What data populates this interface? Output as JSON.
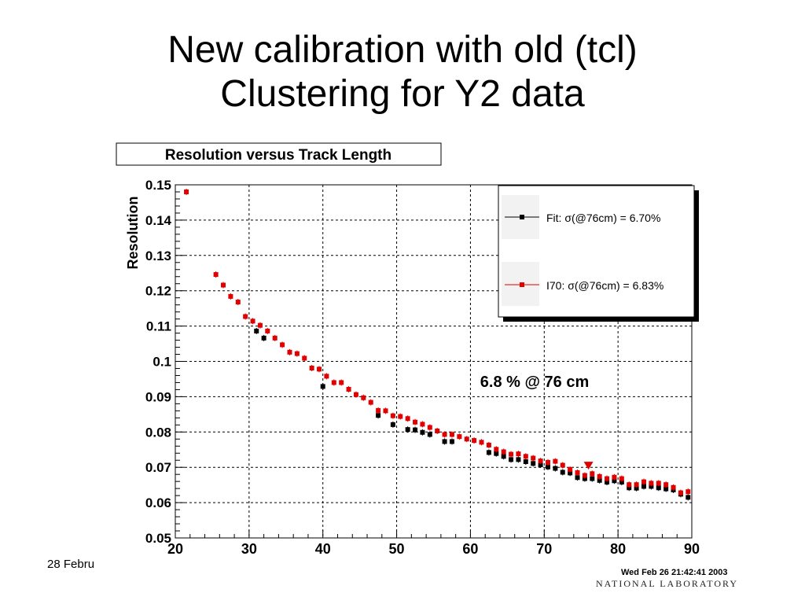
{
  "slide": {
    "title_line1": "New calibration with old (tcl)",
    "title_line2": "Clustering for Y2 data",
    "footer_date": "28 Febru",
    "timestamp": "Wed Feb 26 21:42:41 2003",
    "lab_name": "NATIONAL LABORATORY"
  },
  "chart_data": {
    "type": "scatter",
    "title": "Resolution versus Track Length",
    "xlabel": "",
    "ylabel": "Resolution",
    "xlim": [
      20,
      90
    ],
    "ylim": [
      0.05,
      0.15
    ],
    "grid": true,
    "x_ticks": [
      "20",
      "30",
      "40",
      "50",
      "60",
      "70",
      "80",
      "90"
    ],
    "y_ticks": [
      "0.05",
      "0.06",
      "0.07",
      "0.08",
      "0.09",
      "0.1",
      "0.11",
      "0.12",
      "0.13",
      "0.14",
      "0.15"
    ],
    "legend_position": "top-right",
    "legend": [
      {
        "label": "Fit:  σ(@76cm) =  6.70%",
        "color": "#000000"
      },
      {
        "label": "I70:  σ(@76cm) =  6.83%",
        "color": "#e00000"
      }
    ],
    "annotation": {
      "text": "6.8 % @ 76 cm",
      "x": 76,
      "y": 0.0698,
      "marker_color": "#e00000"
    },
    "series": [
      {
        "name": "Fit",
        "color": "#000000",
        "points": [
          [
            31,
            0.1086
          ],
          [
            32,
            0.1066
          ],
          [
            40,
            0.0929
          ],
          [
            47.5,
            0.0847
          ],
          [
            49.5,
            0.0821
          ],
          [
            51.5,
            0.0807
          ],
          [
            52.5,
            0.0806
          ],
          [
            53.5,
            0.0799
          ],
          [
            54.5,
            0.0793
          ],
          [
            56.5,
            0.0773
          ],
          [
            57.5,
            0.0773
          ],
          [
            62.5,
            0.0742
          ],
          [
            63.5,
            0.0739
          ],
          [
            64.5,
            0.0731
          ],
          [
            65.5,
            0.0722
          ],
          [
            66.5,
            0.0722
          ],
          [
            67.5,
            0.0716
          ],
          [
            68.5,
            0.0711
          ],
          [
            69.5,
            0.0707
          ],
          [
            70.5,
            0.0701
          ],
          [
            71.5,
            0.0697
          ],
          [
            72.5,
            0.0686
          ],
          [
            73.5,
            0.0684
          ],
          [
            74.5,
            0.0671
          ],
          [
            75.5,
            0.0668
          ],
          [
            76.5,
            0.0668
          ],
          [
            77.5,
            0.0663
          ],
          [
            78.5,
            0.0658
          ],
          [
            79.5,
            0.0662
          ],
          [
            80.5,
            0.0658
          ],
          [
            81.5,
            0.0642
          ],
          [
            82.5,
            0.0641
          ],
          [
            83.5,
            0.0646
          ],
          [
            84.5,
            0.0646
          ],
          [
            85.5,
            0.0642
          ],
          [
            86.5,
            0.0639
          ],
          [
            87.5,
            0.0636
          ],
          [
            88.5,
            0.0624
          ],
          [
            89.5,
            0.0615
          ]
        ]
      },
      {
        "name": "I70",
        "color": "#e00000",
        "points": [
          [
            21.5,
            0.148
          ],
          [
            25.5,
            0.1246
          ],
          [
            26.5,
            0.1216
          ],
          [
            27.5,
            0.1184
          ],
          [
            28.5,
            0.1168
          ],
          [
            29.5,
            0.1127
          ],
          [
            30.5,
            0.1114
          ],
          [
            31.5,
            0.1102
          ],
          [
            32.5,
            0.1086
          ],
          [
            33.5,
            0.1066
          ],
          [
            34.5,
            0.1047
          ],
          [
            35.5,
            0.1026
          ],
          [
            36.5,
            0.1022
          ],
          [
            37.5,
            0.1009
          ],
          [
            38.5,
            0.0981
          ],
          [
            39.5,
            0.0978
          ],
          [
            40.5,
            0.0958
          ],
          [
            41.5,
            0.094
          ],
          [
            42.5,
            0.094
          ],
          [
            43.5,
            0.0921
          ],
          [
            44.5,
            0.0906
          ],
          [
            45.5,
            0.0897
          ],
          [
            46.5,
            0.0884
          ],
          [
            47.5,
            0.0861
          ],
          [
            48.5,
            0.086
          ],
          [
            49.5,
            0.0846
          ],
          [
            50.5,
            0.0844
          ],
          [
            51.5,
            0.0838
          ],
          [
            52.5,
            0.0828
          ],
          [
            53.5,
            0.0822
          ],
          [
            54.5,
            0.0813
          ],
          [
            55.5,
            0.0803
          ],
          [
            56.5,
            0.0793
          ],
          [
            57.5,
            0.0793
          ],
          [
            58.5,
            0.0787
          ],
          [
            59.5,
            0.078
          ],
          [
            60.5,
            0.0776
          ],
          [
            61.5,
            0.0771
          ],
          [
            62.5,
            0.0763
          ],
          [
            63.5,
            0.0751
          ],
          [
            64.5,
            0.0744
          ],
          [
            65.5,
            0.0737
          ],
          [
            66.5,
            0.0738
          ],
          [
            67.5,
            0.0731
          ],
          [
            68.5,
            0.0726
          ],
          [
            69.5,
            0.0718
          ],
          [
            70.5,
            0.0714
          ],
          [
            71.5,
            0.0717
          ],
          [
            72.5,
            0.0706
          ],
          [
            73.5,
            0.0694
          ],
          [
            74.5,
            0.0685
          ],
          [
            75.5,
            0.0677
          ],
          [
            76.5,
            0.0682
          ],
          [
            77.5,
            0.0674
          ],
          [
            78.5,
            0.0668
          ],
          [
            79.5,
            0.0672
          ],
          [
            80.5,
            0.0668
          ],
          [
            81.5,
            0.0651
          ],
          [
            82.5,
            0.0651
          ],
          [
            83.5,
            0.0659
          ],
          [
            84.5,
            0.0655
          ],
          [
            85.5,
            0.0655
          ],
          [
            86.5,
            0.0651
          ],
          [
            87.5,
            0.0643
          ],
          [
            88.5,
            0.0628
          ],
          [
            89.5,
            0.0631
          ]
        ]
      }
    ]
  }
}
